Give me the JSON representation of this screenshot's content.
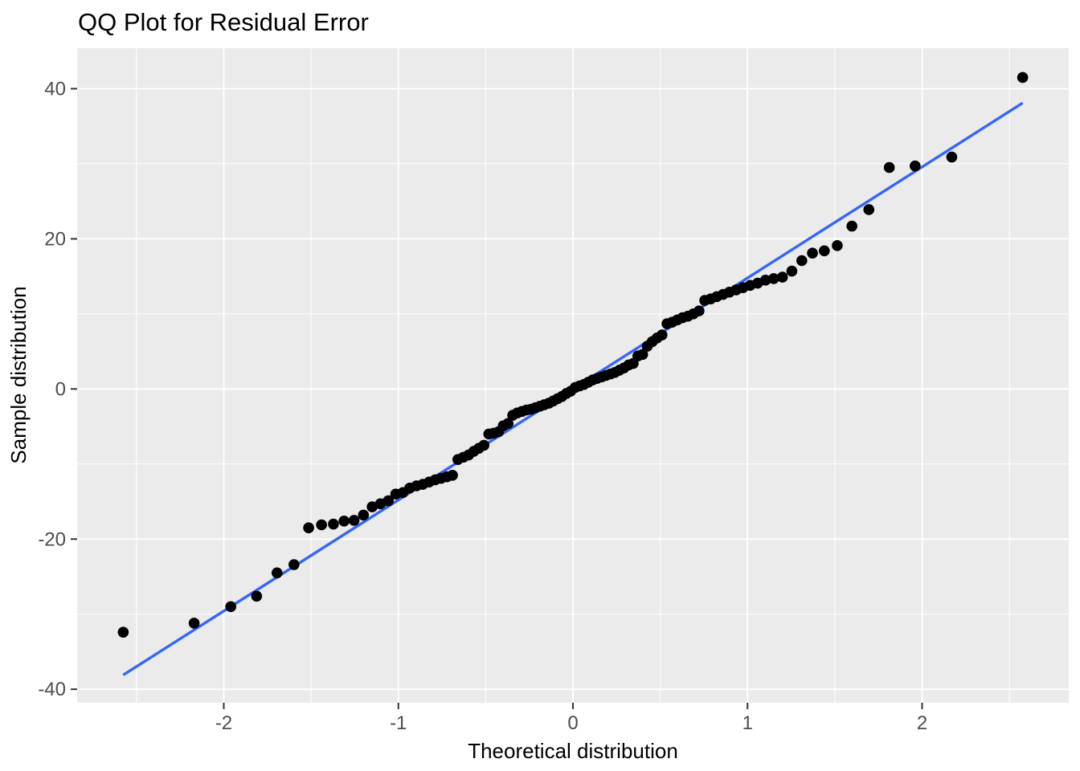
{
  "colors": {
    "figure_background": "#FFFFFF",
    "panel_background": "#EBEBEB",
    "gridline": "#FFFFFF",
    "point": "#000000",
    "qq_line": "#3366FF",
    "tick_label_text": "#4D4D4D",
    "tick_mark": "#333333",
    "title_text": "#000000",
    "axis_title_text": "#000000"
  },
  "chart_data": {
    "type": "scatter",
    "title": "QQ Plot for Residual Error",
    "xlabel": "Theoretical distribution",
    "ylabel": "Sample distribution",
    "xlim": [
      -2.84,
      2.84
    ],
    "ylim": [
      -41.8,
      45.4
    ],
    "grid": "on",
    "legend": "none",
    "x_major_ticks": [
      -2,
      -1,
      0,
      1,
      2
    ],
    "x_tick_labels": [
      "-2",
      "-1",
      "0",
      "1",
      "2"
    ],
    "x_minor_ticks": [
      -2.5,
      -1.5,
      -0.5,
      0.5,
      1.5,
      2.5
    ],
    "y_major_ticks": [
      -40,
      -20,
      0,
      20,
      40
    ],
    "y_tick_labels": [
      "-40",
      "-20",
      "0",
      "20",
      "40"
    ],
    "y_minor_ticks": [
      -30,
      -10,
      10,
      30
    ],
    "qq_line": {
      "x1": -2.576,
      "y1": -38.1,
      "x2": 2.576,
      "y2": 38.1
    },
    "points": [
      [
        -2.576,
        -32.4
      ],
      [
        -2.17,
        -31.2
      ],
      [
        -1.96,
        -29.0
      ],
      [
        -1.812,
        -27.6
      ],
      [
        -1.695,
        -24.5
      ],
      [
        -1.598,
        -23.4
      ],
      [
        -1.514,
        -18.5
      ],
      [
        -1.44,
        -18.1
      ],
      [
        -1.372,
        -18.0
      ],
      [
        -1.311,
        -17.6
      ],
      [
        -1.254,
        -17.5
      ],
      [
        -1.2,
        -16.8
      ],
      [
        -1.15,
        -15.7
      ],
      [
        -1.103,
        -15.3
      ],
      [
        -1.058,
        -14.9
      ],
      [
        -1.015,
        -14.0
      ],
      [
        -0.974,
        -13.8
      ],
      [
        -0.935,
        -13.2
      ],
      [
        -0.896,
        -12.9
      ],
      [
        -0.86,
        -12.7
      ],
      [
        -0.824,
        -12.4
      ],
      [
        -0.789,
        -12.1
      ],
      [
        -0.755,
        -11.9
      ],
      [
        -0.722,
        -11.7
      ],
      [
        -0.69,
        -11.5
      ],
      [
        -0.659,
        -9.4
      ],
      [
        -0.628,
        -9.1
      ],
      [
        -0.598,
        -8.8
      ],
      [
        -0.568,
        -8.3
      ],
      [
        -0.539,
        -7.9
      ],
      [
        -0.51,
        -7.5
      ],
      [
        -0.482,
        -6.0
      ],
      [
        -0.454,
        -5.9
      ],
      [
        -0.426,
        -5.7
      ],
      [
        -0.399,
        -4.9
      ],
      [
        -0.372,
        -4.6
      ],
      [
        -0.345,
        -3.5
      ],
      [
        -0.319,
        -3.2
      ],
      [
        -0.292,
        -3.0
      ],
      [
        -0.266,
        -2.8
      ],
      [
        -0.24,
        -2.7
      ],
      [
        -0.215,
        -2.5
      ],
      [
        -0.189,
        -2.3
      ],
      [
        -0.164,
        -2.1
      ],
      [
        -0.138,
        -1.9
      ],
      [
        -0.113,
        -1.6
      ],
      [
        -0.088,
        -1.3
      ],
      [
        -0.063,
        -1.0
      ],
      [
        -0.038,
        -0.6
      ],
      [
        -0.013,
        -0.3
      ],
      [
        0.013,
        0.2
      ],
      [
        0.038,
        0.4
      ],
      [
        0.063,
        0.6
      ],
      [
        0.088,
        0.9
      ],
      [
        0.113,
        1.2
      ],
      [
        0.138,
        1.4
      ],
      [
        0.164,
        1.6
      ],
      [
        0.189,
        1.8
      ],
      [
        0.215,
        2.0
      ],
      [
        0.24,
        2.2
      ],
      [
        0.266,
        2.5
      ],
      [
        0.292,
        2.8
      ],
      [
        0.319,
        3.2
      ],
      [
        0.345,
        3.4
      ],
      [
        0.372,
        4.4
      ],
      [
        0.399,
        4.6
      ],
      [
        0.426,
        5.7
      ],
      [
        0.454,
        6.3
      ],
      [
        0.482,
        6.8
      ],
      [
        0.51,
        7.2
      ],
      [
        0.539,
        8.7
      ],
      [
        0.568,
        8.9
      ],
      [
        0.598,
        9.2
      ],
      [
        0.628,
        9.5
      ],
      [
        0.659,
        9.7
      ],
      [
        0.69,
        10.0
      ],
      [
        0.722,
        10.4
      ],
      [
        0.755,
        11.8
      ],
      [
        0.789,
        12.0
      ],
      [
        0.824,
        12.3
      ],
      [
        0.86,
        12.6
      ],
      [
        0.896,
        12.9
      ],
      [
        0.935,
        13.2
      ],
      [
        0.974,
        13.5
      ],
      [
        1.015,
        13.8
      ],
      [
        1.058,
        14.1
      ],
      [
        1.103,
        14.5
      ],
      [
        1.15,
        14.7
      ],
      [
        1.2,
        14.9
      ],
      [
        1.254,
        15.7
      ],
      [
        1.311,
        17.1
      ],
      [
        1.372,
        18.1
      ],
      [
        1.44,
        18.4
      ],
      [
        1.514,
        19.1
      ],
      [
        1.598,
        21.7
      ],
      [
        1.695,
        23.9
      ],
      [
        1.812,
        29.5
      ],
      [
        1.96,
        29.7
      ],
      [
        2.17,
        30.9
      ],
      [
        2.576,
        41.5
      ]
    ]
  }
}
